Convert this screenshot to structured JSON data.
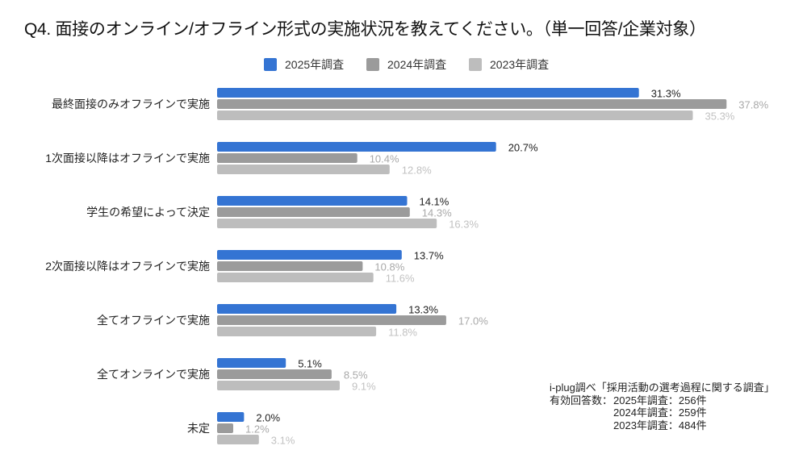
{
  "chart_data": {
    "type": "bar",
    "orientation": "horizontal",
    "title": "Q4. 面接のオンライン/オフライン形式の実施状況を教えてください。（単一回答/企業対象）",
    "xlabel": "",
    "ylabel": "",
    "unit": "%",
    "xlim": [
      0,
      40
    ],
    "grid": false,
    "legend_position": "top",
    "categories": [
      "最終面接のみオフラインで実施",
      "1次面接以降はオフラインで実施",
      "学生の希望によって決定",
      "2次面接以降はオフラインで実施",
      "全てオフラインで実施",
      "全てオンラインで実施",
      "未定"
    ],
    "series": [
      {
        "name": "2025年調査",
        "color": "#3474D3",
        "label_color": "#222222",
        "values": [
          31.3,
          20.7,
          14.1,
          13.7,
          13.3,
          5.1,
          2.0
        ],
        "labels": [
          "31.3%",
          "20.7%",
          "14.1%",
          "13.7%",
          "13.3%",
          "5.1%",
          "2.0%"
        ]
      },
      {
        "name": "2024年調査",
        "color": "#9B9B9B",
        "label_color": "#A9A9A9",
        "values": [
          37.8,
          10.4,
          14.3,
          10.8,
          17.0,
          8.5,
          1.2
        ],
        "labels": [
          "37.8%",
          "10.4%",
          "14.3%",
          "10.8%",
          "17.0%",
          "8.5%",
          "1.2%"
        ]
      },
      {
        "name": "2023年調査",
        "color": "#BDBDBD",
        "label_color": "#C2C2C2",
        "values": [
          35.3,
          12.8,
          16.3,
          11.6,
          11.8,
          9.1,
          3.1
        ],
        "labels": [
          "35.3%",
          "12.8%",
          "16.3%",
          "11.6%",
          "11.8%",
          "9.1%",
          "3.1%"
        ]
      }
    ]
  },
  "note": {
    "source": "i-plug調べ「採用活動の選考過程に関する調査」",
    "counts_label": "有効回答数：",
    "counts": [
      "2025年調査：256件",
      "2024年調査：259件",
      "2023年調査：484件"
    ]
  }
}
